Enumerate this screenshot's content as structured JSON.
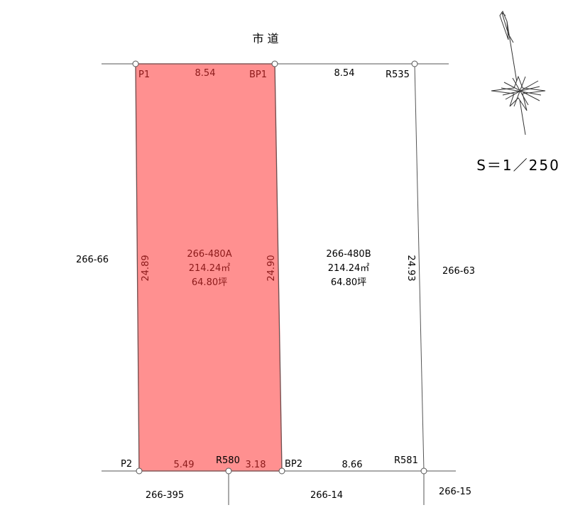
{
  "road": {
    "label": "市 道"
  },
  "scale": {
    "label": "S＝1／250"
  },
  "points": {
    "p1": "P1",
    "bp1": "BP1",
    "r535": "R535",
    "p2": "P2",
    "r580": "R580",
    "bp2": "BP2",
    "r581": "R581"
  },
  "dimensions": {
    "top_a": "8.54",
    "top_b": "8.54",
    "left_a": "24.89",
    "mid": "24.90",
    "right_b": "24.93",
    "bottom_a1": "5.49",
    "bottom_a2": "3.18",
    "bottom_b": "8.66"
  },
  "lots": {
    "a": {
      "number": "266-480A",
      "area_m2": "214.24㎡",
      "area_tsubo": "64.80坪"
    },
    "b": {
      "number": "266-480B",
      "area_m2": "214.24㎡",
      "area_tsubo": "64.80坪"
    }
  },
  "neighbors": {
    "west": "266-66",
    "east": "266-63",
    "south_west": "266-395",
    "south_mid": "266-14",
    "south_east": "266-15"
  },
  "colors": {
    "highlight_fill": "#ff9090",
    "highlight_stroke": "#e06060",
    "line": "#555555"
  }
}
